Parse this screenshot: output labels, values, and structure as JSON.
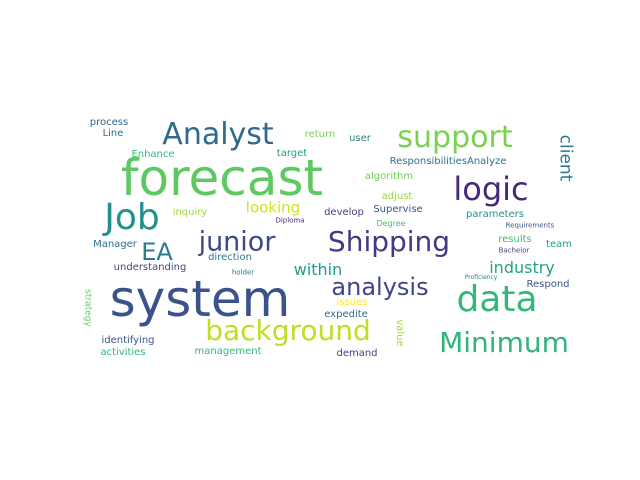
{
  "words": [
    {
      "text": "system",
      "color": "#3b528b",
      "weight": 100
    },
    {
      "text": "forecast",
      "color": "#5ec962",
      "weight": 90
    },
    {
      "text": "Job",
      "color": "#21918c",
      "weight": 62
    },
    {
      "text": "data",
      "color": "#35b779",
      "weight": 58
    },
    {
      "text": "Analyst",
      "color": "#31688e",
      "weight": 54
    },
    {
      "text": "support",
      "color": "#7ad151",
      "weight": 52
    },
    {
      "text": "logic",
      "color": "#482878",
      "weight": 52
    },
    {
      "text": "Shipping",
      "color": "#443983",
      "weight": 48
    },
    {
      "text": "background",
      "color": "#bddf26",
      "weight": 48
    },
    {
      "text": "Minimum",
      "color": "#2fb47c",
      "weight": 46
    },
    {
      "text": "junior",
      "color": "#3e4989",
      "weight": 44
    },
    {
      "text": "EA",
      "color": "#287c8e",
      "weight": 42
    },
    {
      "text": "analysis",
      "color": "#414487",
      "weight": 38
    },
    {
      "text": "client",
      "color": "#2a788e",
      "weight": 30
    },
    {
      "text": "industry",
      "color": "#20a486",
      "weight": 26
    },
    {
      "text": "within",
      "color": "#1f9e89",
      "weight": 26
    },
    {
      "text": "looking",
      "color": "#d2e21b",
      "weight": 24
    },
    {
      "text": "process",
      "color": "#33638d",
      "weight": 18
    },
    {
      "text": "Line",
      "color": "#2d708e",
      "weight": 18
    },
    {
      "text": "return",
      "color": "#7ad151",
      "weight": 18
    },
    {
      "text": "user",
      "color": "#26828e",
      "weight": 18
    },
    {
      "text": "Enhance",
      "color": "#35b779",
      "weight": 18
    },
    {
      "text": "target",
      "color": "#1f9e89",
      "weight": 18
    },
    {
      "text": "ResponsibilitiesAnalyze",
      "color": "#2c728e",
      "weight": 18
    },
    {
      "text": "algorithm",
      "color": "#6ece58",
      "weight": 16
    },
    {
      "text": "adjust",
      "color": "#8fd744",
      "weight": 16
    },
    {
      "text": "Supervise",
      "color": "#3b528b",
      "weight": 16
    },
    {
      "text": "develop",
      "color": "#433e85",
      "weight": 16
    },
    {
      "text": "inquiry",
      "color": "#a0da39",
      "weight": 16
    },
    {
      "text": "parameters",
      "color": "#21918c",
      "weight": 16
    },
    {
      "text": "Diploma",
      "color": "#472d7b",
      "weight": 12
    },
    {
      "text": "Degree",
      "color": "#4ac16d",
      "weight": 12
    },
    {
      "text": "Requirements",
      "color": "#3b528b",
      "weight": 12
    },
    {
      "text": "Manager",
      "color": "#2c728e",
      "weight": 16
    },
    {
      "text": "direction",
      "color": "#2a788e",
      "weight": 16
    },
    {
      "text": "results",
      "color": "#3dbc74",
      "weight": 16
    },
    {
      "text": "team",
      "color": "#1f9a8a",
      "weight": 16
    },
    {
      "text": "understanding",
      "color": "#3e4989",
      "weight": 16
    },
    {
      "text": "holder",
      "color": "#2c728e",
      "weight": 12
    },
    {
      "text": "Bachelor",
      "color": "#433e85",
      "weight": 12
    },
    {
      "text": "Proficiency",
      "color": "#26828e",
      "weight": 11
    },
    {
      "text": "Respond",
      "color": "#3b528b",
      "weight": 16
    },
    {
      "text": "strategy",
      "color": "#5ec962",
      "weight": 14
    },
    {
      "text": "issues",
      "color": "#fde725",
      "weight": 16
    },
    {
      "text": "expedite",
      "color": "#31688e",
      "weight": 16
    },
    {
      "text": "value",
      "color": "#a5db36",
      "weight": 14
    },
    {
      "text": "identifying",
      "color": "#3b528b",
      "weight": 16
    },
    {
      "text": "management",
      "color": "#35b779",
      "weight": 16
    },
    {
      "text": "demand",
      "color": "#433e85",
      "weight": 16
    },
    {
      "text": "activities",
      "color": "#2fb47c",
      "weight": 16
    }
  ]
}
